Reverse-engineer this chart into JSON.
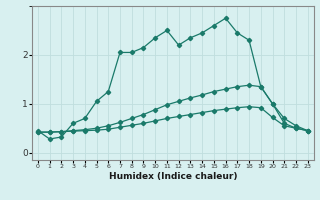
{
  "xlabel": "Humidex (Indice chaleur)",
  "ylabel": "",
  "bg_color": "#d8f0f0",
  "grid_color": "#c0dede",
  "line_color": "#1a7a6a",
  "xlim": [
    -0.5,
    23.5
  ],
  "ylim": [
    -0.15,
    3.0
  ],
  "yticks": [
    0,
    1,
    2
  ],
  "xtick_labels": [
    "0",
    "1",
    "2",
    "3",
    "4",
    "5",
    "6",
    "7",
    "8",
    "9",
    "10",
    "11",
    "12",
    "13",
    "14",
    "15",
    "16",
    "17",
    "18",
    "19",
    "20",
    "21",
    "22",
    "23"
  ],
  "line1_x": [
    0,
    1,
    2,
    3,
    4,
    5,
    6,
    7,
    8,
    9,
    10,
    11,
    12,
    13,
    14,
    15,
    16,
    17,
    18,
    19,
    20,
    21,
    22,
    23
  ],
  "line1_y": [
    0.45,
    0.28,
    0.32,
    0.6,
    0.7,
    1.05,
    1.25,
    2.05,
    2.05,
    2.15,
    2.35,
    2.5,
    2.2,
    2.35,
    2.45,
    2.6,
    2.75,
    2.45,
    2.3,
    1.35,
    1.0,
    0.7,
    0.55,
    0.45
  ],
  "line2_x": [
    0,
    1,
    2,
    3,
    4,
    5,
    6,
    7,
    8,
    9,
    10,
    11,
    12,
    13,
    14,
    15,
    16,
    17,
    18,
    19,
    20,
    21,
    22,
    23
  ],
  "line2_y": [
    0.42,
    0.42,
    0.43,
    0.45,
    0.47,
    0.5,
    0.55,
    0.62,
    0.7,
    0.78,
    0.88,
    0.98,
    1.05,
    1.12,
    1.18,
    1.25,
    1.3,
    1.35,
    1.38,
    1.35,
    1.0,
    0.6,
    0.5,
    0.45
  ],
  "line3_x": [
    0,
    1,
    2,
    3,
    4,
    5,
    6,
    7,
    8,
    9,
    10,
    11,
    12,
    13,
    14,
    15,
    16,
    17,
    18,
    19,
    20,
    21,
    22,
    23
  ],
  "line3_y": [
    0.42,
    0.42,
    0.43,
    0.44,
    0.45,
    0.46,
    0.48,
    0.52,
    0.56,
    0.6,
    0.65,
    0.7,
    0.74,
    0.78,
    0.82,
    0.86,
    0.89,
    0.92,
    0.94,
    0.92,
    0.72,
    0.55,
    0.5,
    0.45
  ]
}
